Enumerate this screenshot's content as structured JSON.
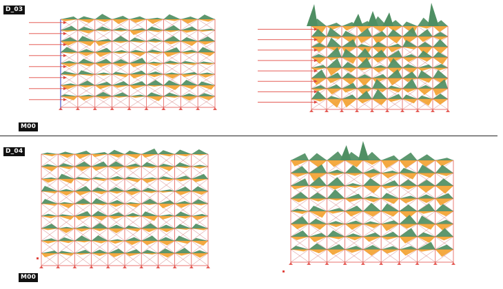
{
  "sections": [
    {
      "id_label": "D_03",
      "mode_label": "M00"
    },
    {
      "id_label": "D_04",
      "mode_label": "M00"
    }
  ],
  "colors": {
    "moment_positive": "#4f8f63",
    "moment_negative": "#f3a12e",
    "load_arrow": "#e0433c",
    "frame_member": "#e0433c",
    "bracing": "#d98b8b",
    "column_highlight": "#4a55c9",
    "divider": "#222222"
  },
  "icons": {
    "origin_marker": "small-red-marker-icon"
  }
}
